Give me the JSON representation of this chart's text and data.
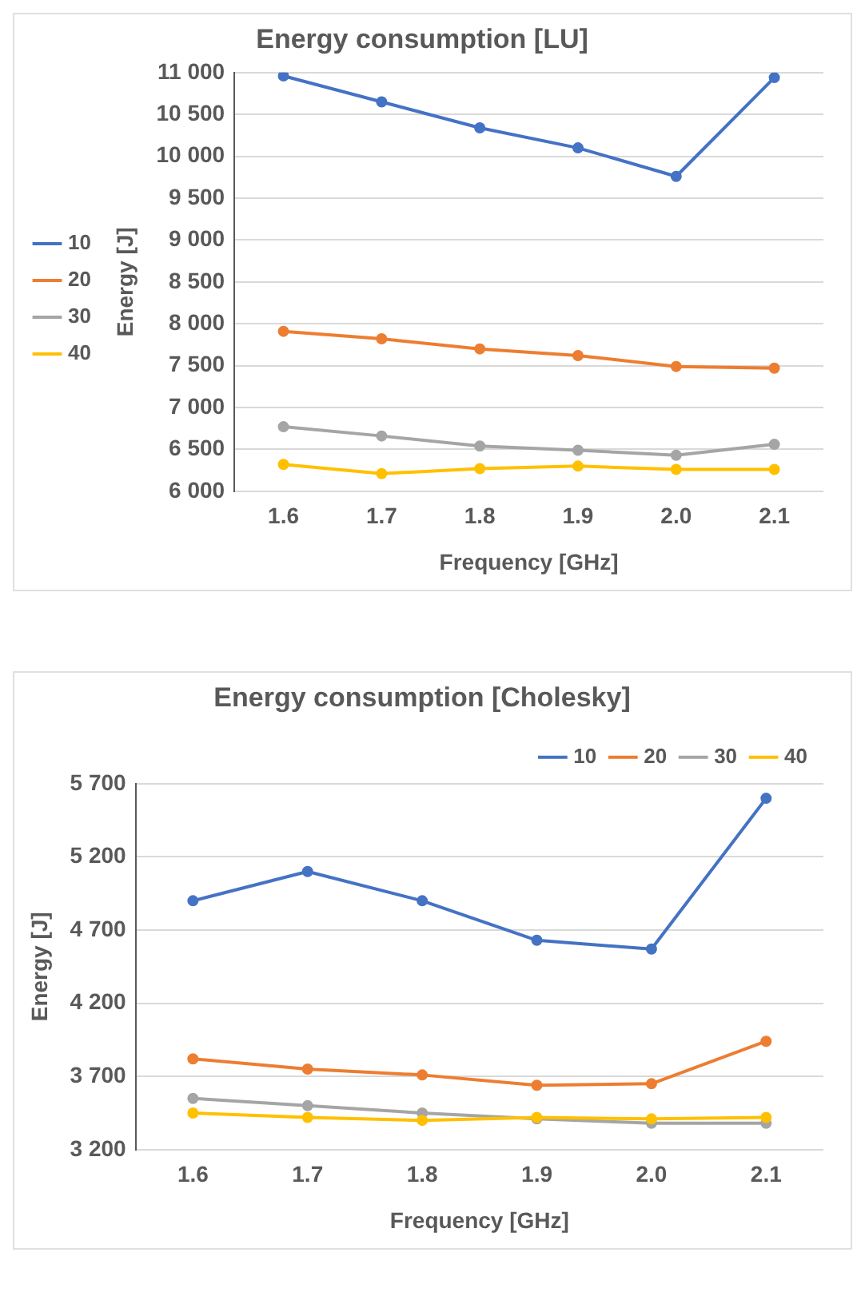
{
  "chart_data": [
    {
      "type": "line",
      "title": "Energy consumption [LU]",
      "xlabel": "Frequency [GHz]",
      "ylabel": "Energy [J]",
      "categories": [
        "1.6",
        "1.7",
        "1.8",
        "1.9",
        "2.0",
        "2.1"
      ],
      "series": [
        {
          "name": "10",
          "color": "#4472c4",
          "values": [
            10960,
            10650,
            10340,
            10100,
            9760,
            10940
          ]
        },
        {
          "name": "20",
          "color": "#ed7d31",
          "values": [
            7910,
            7820,
            7700,
            7620,
            7490,
            7470
          ]
        },
        {
          "name": "30",
          "color": "#a5a5a5",
          "values": [
            6770,
            6660,
            6540,
            6490,
            6430,
            6560
          ]
        },
        {
          "name": "40",
          "color": "#ffc000",
          "values": [
            6320,
            6210,
            6270,
            6300,
            6260,
            6260
          ]
        }
      ],
      "ylim": [
        6000,
        11000
      ],
      "yticks": [
        {
          "value": 6000,
          "label": "6 000"
        },
        {
          "value": 6500,
          "label": "6 500"
        },
        {
          "value": 7000,
          "label": "7 000"
        },
        {
          "value": 7500,
          "label": "7 500"
        },
        {
          "value": 8000,
          "label": "8 000"
        },
        {
          "value": 8500,
          "label": "8 500"
        },
        {
          "value": 9000,
          "label": "9 000"
        },
        {
          "value": 9500,
          "label": "9 500"
        },
        {
          "value": 10000,
          "label": "10 000"
        },
        {
          "value": 10500,
          "label": "10 500"
        },
        {
          "value": 11000,
          "label": "11 000"
        }
      ],
      "grid": "y",
      "legend": "left",
      "marker": "circle",
      "line_style": "solid"
    },
    {
      "type": "line",
      "title": "Energy consumption [Cholesky]",
      "xlabel": "Frequency [GHz]",
      "ylabel": "Energy [J]",
      "categories": [
        "1.6",
        "1.7",
        "1.8",
        "1.9",
        "2.0",
        "2.1"
      ],
      "series": [
        {
          "name": "10",
          "color": "#4472c4",
          "values": [
            4900,
            5100,
            4900,
            4630,
            4570,
            5600
          ]
        },
        {
          "name": "20",
          "color": "#ed7d31",
          "values": [
            3820,
            3750,
            3710,
            3640,
            3650,
            3940
          ]
        },
        {
          "name": "30",
          "color": "#a5a5a5",
          "values": [
            3550,
            3500,
            3450,
            3410,
            3380,
            3380
          ]
        },
        {
          "name": "40",
          "color": "#ffc000",
          "values": [
            3450,
            3420,
            3400,
            3420,
            3410,
            3420
          ]
        }
      ],
      "ylim": [
        3200,
        5700
      ],
      "yticks": [
        {
          "value": 3200,
          "label": "3 200"
        },
        {
          "value": 3700,
          "label": "3 700"
        },
        {
          "value": 4200,
          "label": "4 200"
        },
        {
          "value": 4700,
          "label": "4 700"
        },
        {
          "value": 5200,
          "label": "5 200"
        },
        {
          "value": 5700,
          "label": "5 700"
        }
      ],
      "grid": "y",
      "legend": "top right",
      "marker": "circle",
      "line_style": "solid"
    }
  ]
}
